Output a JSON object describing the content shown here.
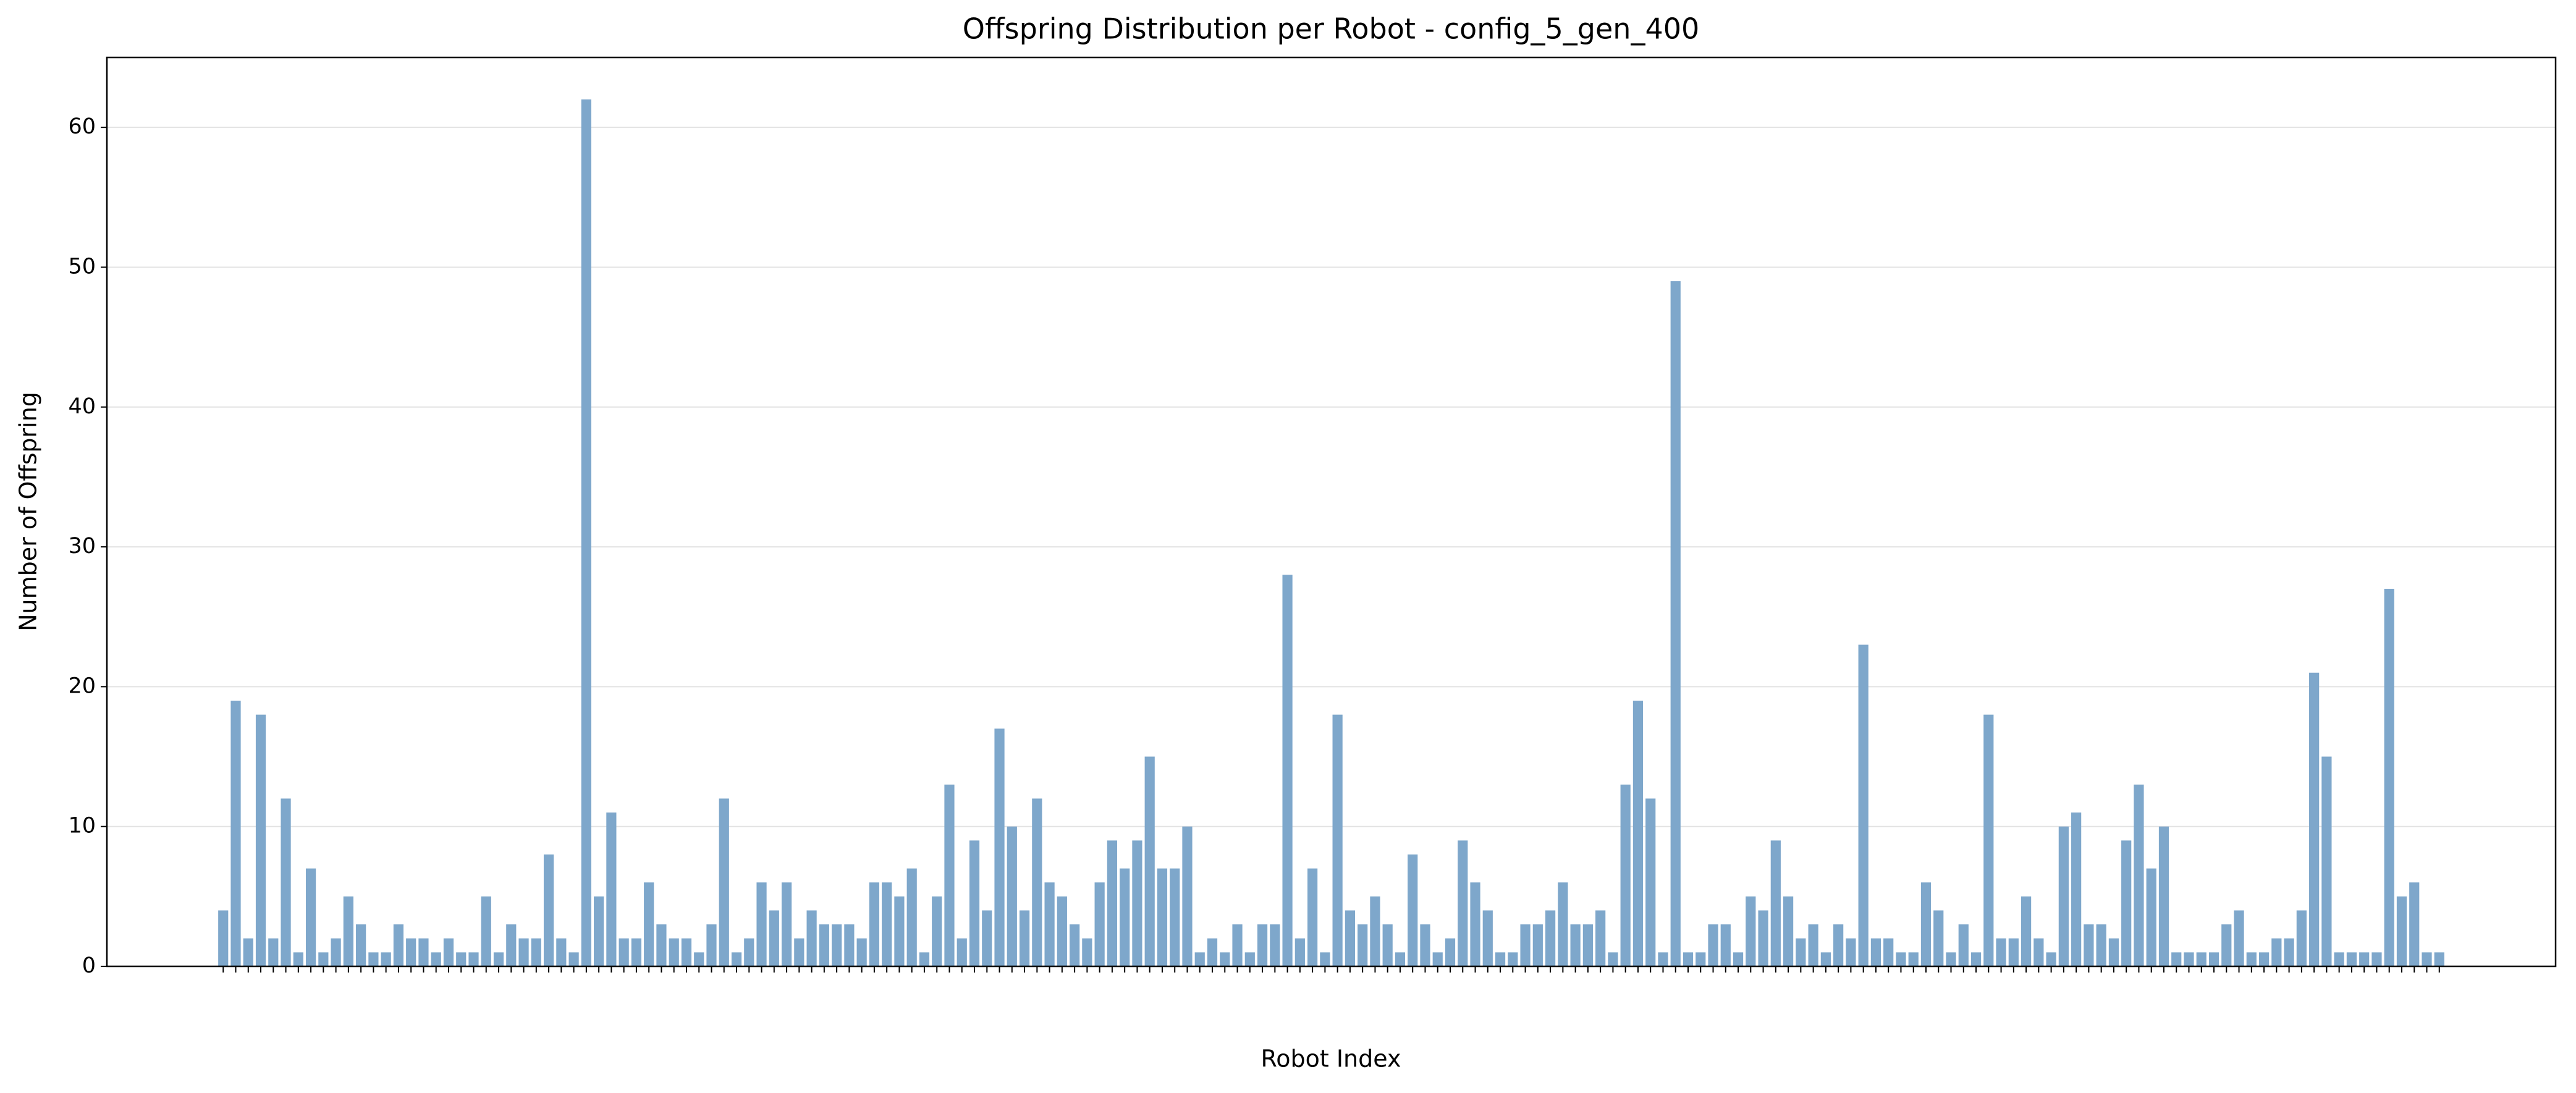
{
  "chart_data": {
    "type": "bar",
    "title": "Offspring Distribution per Robot - config_5_gen_400",
    "x_label": "Robot Index",
    "y_label": "Number of Offspring",
    "categories": [
      null,
      null,
      null,
      null,
      null,
      null,
      null,
      null,
      null,
      null,
      null,
      null,
      null,
      null,
      null,
      null,
      null,
      null,
      null,
      null,
      null,
      null,
      null,
      null,
      null,
      null,
      null,
      null,
      null,
      null,
      null,
      null,
      null,
      null,
      null,
      null,
      null,
      null,
      null,
      null,
      null,
      null,
      null,
      null,
      null,
      null,
      null,
      null,
      null,
      null,
      null,
      null,
      null,
      null,
      null,
      null,
      null,
      null,
      null,
      null,
      null,
      null,
      null,
      null,
      null,
      null,
      null,
      null,
      null,
      null,
      null,
      null,
      null,
      null,
      null,
      null,
      null,
      null,
      null,
      null,
      null,
      null,
      null,
      null,
      null,
      null,
      null,
      null,
      null,
      null,
      null,
      null,
      null,
      null,
      null,
      null,
      null,
      null,
      null,
      null,
      null,
      null,
      null,
      null,
      null,
      null,
      null,
      null,
      null,
      null,
      null,
      null,
      null,
      null,
      null,
      null,
      null,
      null,
      null,
      null,
      null,
      null,
      null,
      null,
      null,
      null,
      null,
      null,
      null,
      null,
      null,
      null,
      null,
      null,
      null,
      null,
      null,
      null,
      null,
      null,
      null,
      null,
      null,
      null,
      null,
      null,
      null,
      null,
      null,
      null,
      null,
      null,
      null,
      null,
      null,
      null,
      null,
      null,
      null,
      null,
      null,
      null,
      null,
      null,
      null,
      null,
      null,
      null,
      null,
      null,
      null,
      null,
      null,
      null,
      null,
      null,
      null,
      null
    ],
    "values": [
      4,
      19,
      2,
      18,
      2,
      12,
      1,
      7,
      1,
      2,
      5,
      3,
      1,
      1,
      3,
      2,
      2,
      1,
      2,
      1,
      1,
      5,
      1,
      3,
      2,
      2,
      8,
      2,
      1,
      62,
      5,
      11,
      2,
      2,
      6,
      3,
      2,
      2,
      1,
      3,
      12,
      1,
      2,
      6,
      4,
      6,
      2,
      4,
      3,
      3,
      3,
      2,
      6,
      6,
      5,
      7,
      1,
      5,
      13,
      2,
      9,
      4,
      17,
      10,
      4,
      12,
      6,
      5,
      3,
      2,
      6,
      9,
      7,
      9,
      15,
      7,
      7,
      10,
      1,
      2,
      1,
      3,
      1,
      3,
      3,
      28,
      2,
      7,
      1,
      18,
      4,
      3,
      5,
      3,
      1,
      8,
      3,
      1,
      2,
      9,
      6,
      4,
      1,
      1,
      3,
      3,
      4,
      6,
      3,
      3,
      4,
      1,
      13,
      19,
      12,
      1,
      49,
      1,
      1,
      3,
      3,
      1,
      5,
      4,
      9,
      5,
      2,
      3,
      1,
      3,
      2,
      23,
      2,
      2,
      1,
      1,
      6,
      4,
      1,
      3,
      1,
      18,
      2,
      2,
      5,
      2,
      1,
      10,
      11,
      3,
      3,
      2,
      9,
      13,
      7,
      10,
      1,
      1,
      1,
      1,
      3,
      4,
      1,
      1,
      2,
      2,
      4,
      21,
      15,
      1,
      1,
      1,
      1,
      27,
      5,
      6,
      1,
      1
    ],
    "color": "#7ea7cb",
    "ylim": [
      0,
      65
    ],
    "yticks": [
      0,
      10,
      20,
      30,
      40,
      50,
      60
    ],
    "grid": true
  }
}
